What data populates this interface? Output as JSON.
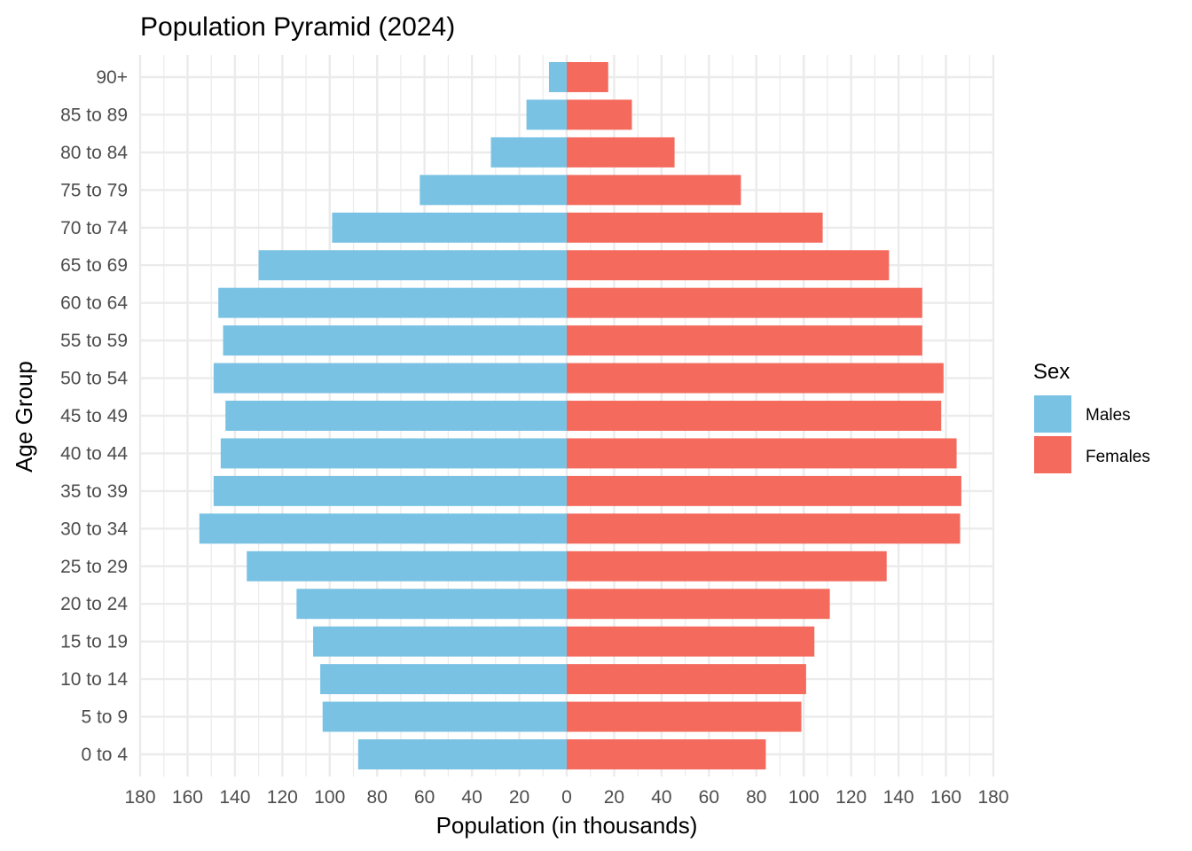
{
  "chart_data": {
    "type": "bar",
    "orientation": "horizontal",
    "title": "Population Pyramid (2024)",
    "xlabel": "Population (in thousands)",
    "ylabel": "Age Group",
    "xlim": [
      -180,
      180
    ],
    "xticks": [
      -180,
      -160,
      -140,
      -120,
      -100,
      -80,
      -60,
      -40,
      -20,
      0,
      20,
      40,
      60,
      80,
      100,
      120,
      140,
      160,
      180
    ],
    "xtick_labels": [
      "180",
      "160",
      "140",
      "120",
      "100",
      "80",
      "60",
      "40",
      "20",
      "0",
      "20",
      "40",
      "60",
      "80",
      "100",
      "120",
      "140",
      "160",
      "180"
    ],
    "grid": true,
    "legend": {
      "title": "Sex",
      "position": "right"
    },
    "categories": [
      "0 to 4",
      "5 to 9",
      "10 to 14",
      "15 to 19",
      "20 to 24",
      "25 to 29",
      "30 to 34",
      "35 to 39",
      "40 to 44",
      "45 to 49",
      "50 to 54",
      "55 to 59",
      "60 to 64",
      "65 to 69",
      "70 to 74",
      "75 to 79",
      "80 to 84",
      "85 to 89",
      "90+"
    ],
    "series": [
      {
        "name": "Males",
        "color": "#79C2E4",
        "direction": "left",
        "values": [
          88,
          103,
          104,
          107,
          114,
          135,
          155,
          149,
          146,
          144,
          149,
          145,
          147,
          130,
          99,
          62,
          32,
          17,
          7.5
        ]
      },
      {
        "name": "Females",
        "color": "#F46B5E",
        "direction": "right",
        "values": [
          84,
          99,
          101,
          104.5,
          111,
          135,
          166,
          166.5,
          164.5,
          158,
          159,
          150,
          150,
          136,
          108,
          73.5,
          45.5,
          27.5,
          17.5
        ]
      }
    ]
  },
  "colors": {
    "grid_major": "#EBEBEB",
    "grid_minor": "#EBEBEB",
    "tick_text": "#4D4D4D",
    "background": "#FFFFFF"
  }
}
